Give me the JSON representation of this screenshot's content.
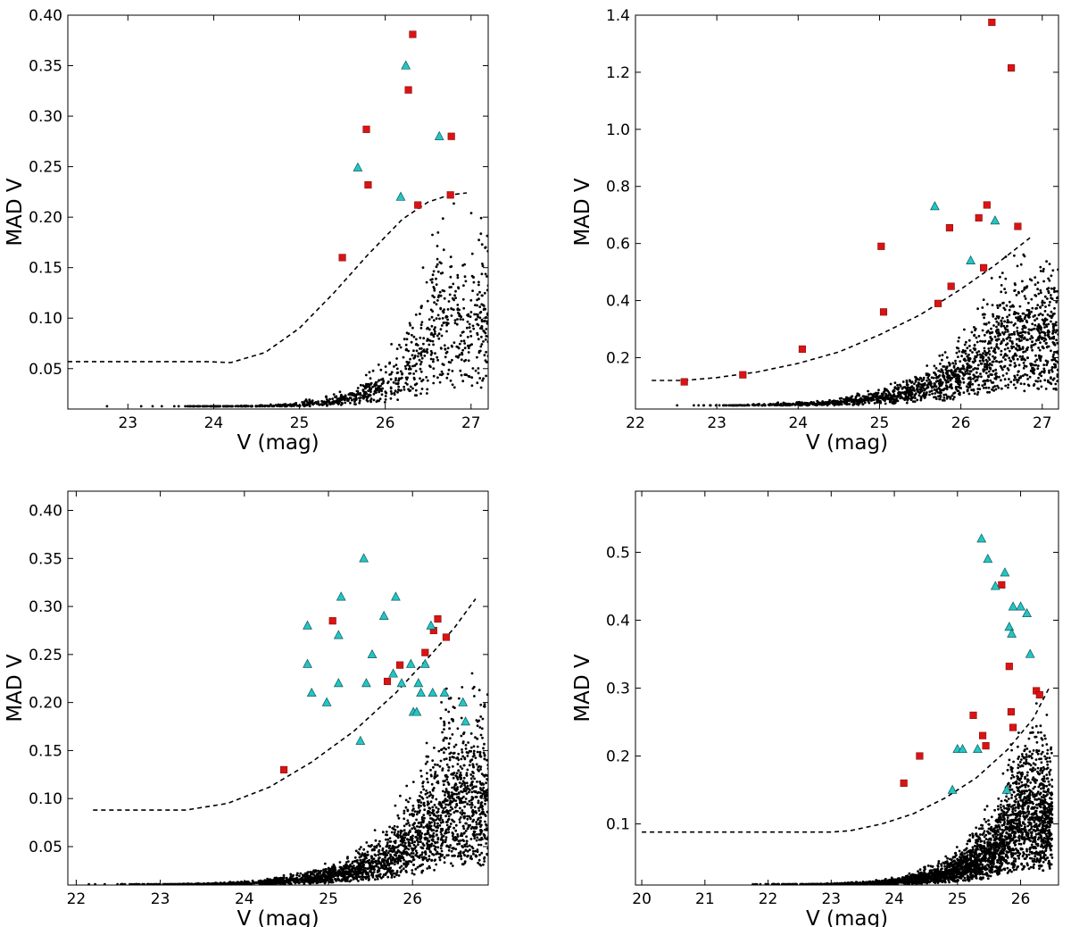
{
  "colors": {
    "square": "#d81414",
    "triangle": "#26c4c4",
    "points": "#000000"
  },
  "chart_data": [
    {
      "type": "scatter",
      "xlabel": "V (mag)",
      "ylabel": "MAD V",
      "xlim": [
        22.3,
        27.2
      ],
      "ylim": [
        0.01,
        0.4
      ],
      "xticks": [
        23,
        24,
        25,
        26,
        27
      ],
      "yticks": [
        0.05,
        0.1,
        0.15,
        0.2,
        0.25,
        0.3,
        0.35,
        0.4
      ],
      "ytick_labels": [
        "0.05",
        "0.10",
        "0.15",
        "0.20",
        "0.25",
        "0.30",
        "0.35",
        "0.40"
      ],
      "threshold": {
        "x": [
          22.3,
          23.0,
          23.5,
          23.9,
          24.2,
          24.6,
          25.0,
          25.4,
          25.8,
          26.2,
          26.5,
          26.75,
          26.95
        ],
        "y": [
          0.057,
          0.057,
          0.057,
          0.057,
          0.056,
          0.066,
          0.09,
          0.125,
          0.163,
          0.198,
          0.215,
          0.222,
          0.224
        ]
      },
      "squares": [
        [
          25.5,
          0.16
        ],
        [
          25.78,
          0.287
        ],
        [
          25.8,
          0.232
        ],
        [
          26.27,
          0.326
        ],
        [
          26.32,
          0.381
        ],
        [
          26.38,
          0.212
        ],
        [
          26.77,
          0.28
        ],
        [
          26.76,
          0.222
        ]
      ],
      "triangles": [
        [
          25.68,
          0.249
        ],
        [
          26.18,
          0.22
        ],
        [
          26.24,
          0.35
        ],
        [
          26.63,
          0.28
        ]
      ],
      "scatter": {
        "n": 900,
        "x_range": [
          22.7,
          27.2
        ],
        "y_floor": 0.012,
        "y_ref": 0.08,
        "spread": 0.12,
        "steep": 2.2,
        "peak": 26.6,
        "seed": 11
      }
    },
    {
      "type": "scatter",
      "xlabel": "V (mag)",
      "ylabel": "MAD V",
      "xlim": [
        22.0,
        27.2
      ],
      "ylim": [
        0.02,
        1.4
      ],
      "xticks": [
        22,
        23,
        24,
        25,
        26,
        27
      ],
      "yticks": [
        0.2,
        0.4,
        0.6,
        0.8,
        1.0,
        1.2,
        1.4
      ],
      "ytick_labels": [
        "0.2",
        "0.4",
        "0.6",
        "0.8",
        "1.0",
        "1.2",
        "1.4"
      ],
      "threshold": {
        "x": [
          22.2,
          22.6,
          23.0,
          23.5,
          24.0,
          24.5,
          25.0,
          25.5,
          26.0,
          26.4,
          26.85
        ],
        "y": [
          0.12,
          0.12,
          0.13,
          0.15,
          0.18,
          0.22,
          0.28,
          0.35,
          0.44,
          0.52,
          0.62
        ]
      },
      "squares": [
        [
          22.6,
          0.115
        ],
        [
          23.32,
          0.14
        ],
        [
          24.05,
          0.23
        ],
        [
          25.02,
          0.59
        ],
        [
          25.05,
          0.36
        ],
        [
          25.72,
          0.39
        ],
        [
          25.86,
          0.655
        ],
        [
          25.88,
          0.45
        ],
        [
          26.22,
          0.69
        ],
        [
          26.28,
          0.515
        ],
        [
          26.32,
          0.735
        ],
        [
          26.38,
          1.375
        ],
        [
          26.62,
          1.215
        ],
        [
          26.7,
          0.66
        ]
      ],
      "triangles": [
        [
          25.68,
          0.73
        ],
        [
          26.12,
          0.54
        ],
        [
          26.42,
          0.68
        ]
      ],
      "scatter": {
        "n": 1700,
        "x_range": [
          22.2,
          27.2
        ],
        "y_floor": 0.03,
        "y_ref": 0.24,
        "spread": 0.3,
        "steep": 1.4,
        "peak": 26.5,
        "seed": 23
      }
    },
    {
      "type": "scatter",
      "xlabel": "V (mag)",
      "ylabel": "MAD V",
      "xlim": [
        21.9,
        26.9
      ],
      "ylim": [
        0.01,
        0.42
      ],
      "xticks": [
        22,
        23,
        24,
        25,
        26
      ],
      "yticks": [
        0.05,
        0.1,
        0.15,
        0.2,
        0.25,
        0.3,
        0.35,
        0.4
      ],
      "ytick_labels": [
        "0.05",
        "0.10",
        "0.15",
        "0.20",
        "0.25",
        "0.30",
        "0.35",
        "0.40"
      ],
      "threshold": {
        "x": [
          22.2,
          22.8,
          23.3,
          23.8,
          24.3,
          24.8,
          25.3,
          25.8,
          26.2,
          26.5,
          26.75
        ],
        "y": [
          0.088,
          0.088,
          0.088,
          0.095,
          0.112,
          0.138,
          0.17,
          0.21,
          0.248,
          0.278,
          0.308
        ]
      },
      "squares": [
        [
          24.47,
          0.13
        ],
        [
          25.05,
          0.285
        ],
        [
          25.7,
          0.222
        ],
        [
          25.85,
          0.239
        ],
        [
          26.15,
          0.252
        ],
        [
          26.25,
          0.275
        ],
        [
          26.3,
          0.287
        ],
        [
          26.4,
          0.268
        ]
      ],
      "triangles": [
        [
          24.75,
          0.28
        ],
        [
          24.75,
          0.24
        ],
        [
          24.8,
          0.21
        ],
        [
          24.98,
          0.2
        ],
        [
          25.12,
          0.27
        ],
        [
          25.12,
          0.22
        ],
        [
          25.15,
          0.31
        ],
        [
          25.38,
          0.16
        ],
        [
          25.42,
          0.35
        ],
        [
          25.45,
          0.22
        ],
        [
          25.52,
          0.25
        ],
        [
          25.66,
          0.29
        ],
        [
          25.77,
          0.23
        ],
        [
          25.8,
          0.31
        ],
        [
          25.87,
          0.22
        ],
        [
          25.98,
          0.24
        ],
        [
          26.01,
          0.19
        ],
        [
          26.05,
          0.19
        ],
        [
          26.07,
          0.22
        ],
        [
          26.1,
          0.21
        ],
        [
          26.15,
          0.24
        ],
        [
          26.22,
          0.28
        ],
        [
          26.24,
          0.21
        ],
        [
          26.38,
          0.21
        ],
        [
          26.6,
          0.2
        ],
        [
          26.63,
          0.18
        ]
      ],
      "scatter": {
        "n": 2400,
        "x_range": [
          22.0,
          26.9
        ],
        "y_floor": 0.01,
        "y_ref": 0.085,
        "spread": 0.13,
        "steep": 1.6,
        "peak": 26.4,
        "seed": 37
      }
    },
    {
      "type": "scatter",
      "xlabel": "V (mag)",
      "ylabel": "MAD V",
      "xlim": [
        19.9,
        26.6
      ],
      "ylim": [
        0.01,
        0.59
      ],
      "xticks": [
        20,
        21,
        22,
        23,
        24,
        25,
        26
      ],
      "yticks": [
        0.1,
        0.2,
        0.3,
        0.4,
        0.5
      ],
      "ytick_labels": [
        "0.1",
        "0.2",
        "0.3",
        "0.4",
        "0.5"
      ],
      "threshold": {
        "x": [
          20.0,
          21.0,
          22.0,
          23.0,
          23.3,
          23.8,
          24.3,
          24.8,
          25.3,
          25.8,
          26.2,
          26.45
        ],
        "y": [
          0.088,
          0.088,
          0.088,
          0.088,
          0.09,
          0.1,
          0.115,
          0.138,
          0.168,
          0.21,
          0.255,
          0.3
        ]
      },
      "squares": [
        [
          24.15,
          0.16
        ],
        [
          24.4,
          0.2
        ],
        [
          25.25,
          0.26
        ],
        [
          25.4,
          0.23
        ],
        [
          25.45,
          0.215
        ],
        [
          25.7,
          0.452
        ],
        [
          25.82,
          0.332
        ],
        [
          25.85,
          0.265
        ],
        [
          25.88,
          0.242
        ],
        [
          26.25,
          0.296
        ],
        [
          26.3,
          0.29
        ]
      ],
      "triangles": [
        [
          24.92,
          0.15
        ],
        [
          25.0,
          0.21
        ],
        [
          25.08,
          0.21
        ],
        [
          25.32,
          0.21
        ],
        [
          25.38,
          0.52
        ],
        [
          25.48,
          0.49
        ],
        [
          25.6,
          0.45
        ],
        [
          25.75,
          0.47
        ],
        [
          25.78,
          0.15
        ],
        [
          25.82,
          0.39
        ],
        [
          25.86,
          0.38
        ],
        [
          25.88,
          0.42
        ],
        [
          26.0,
          0.42
        ],
        [
          26.1,
          0.41
        ],
        [
          26.15,
          0.35
        ]
      ],
      "scatter": {
        "n": 3000,
        "x_range": [
          21.5,
          26.5
        ],
        "y_floor": 0.01,
        "y_ref": 0.09,
        "spread": 0.16,
        "steep": 1.5,
        "peak": 26.0,
        "seed": 51
      }
    }
  ]
}
